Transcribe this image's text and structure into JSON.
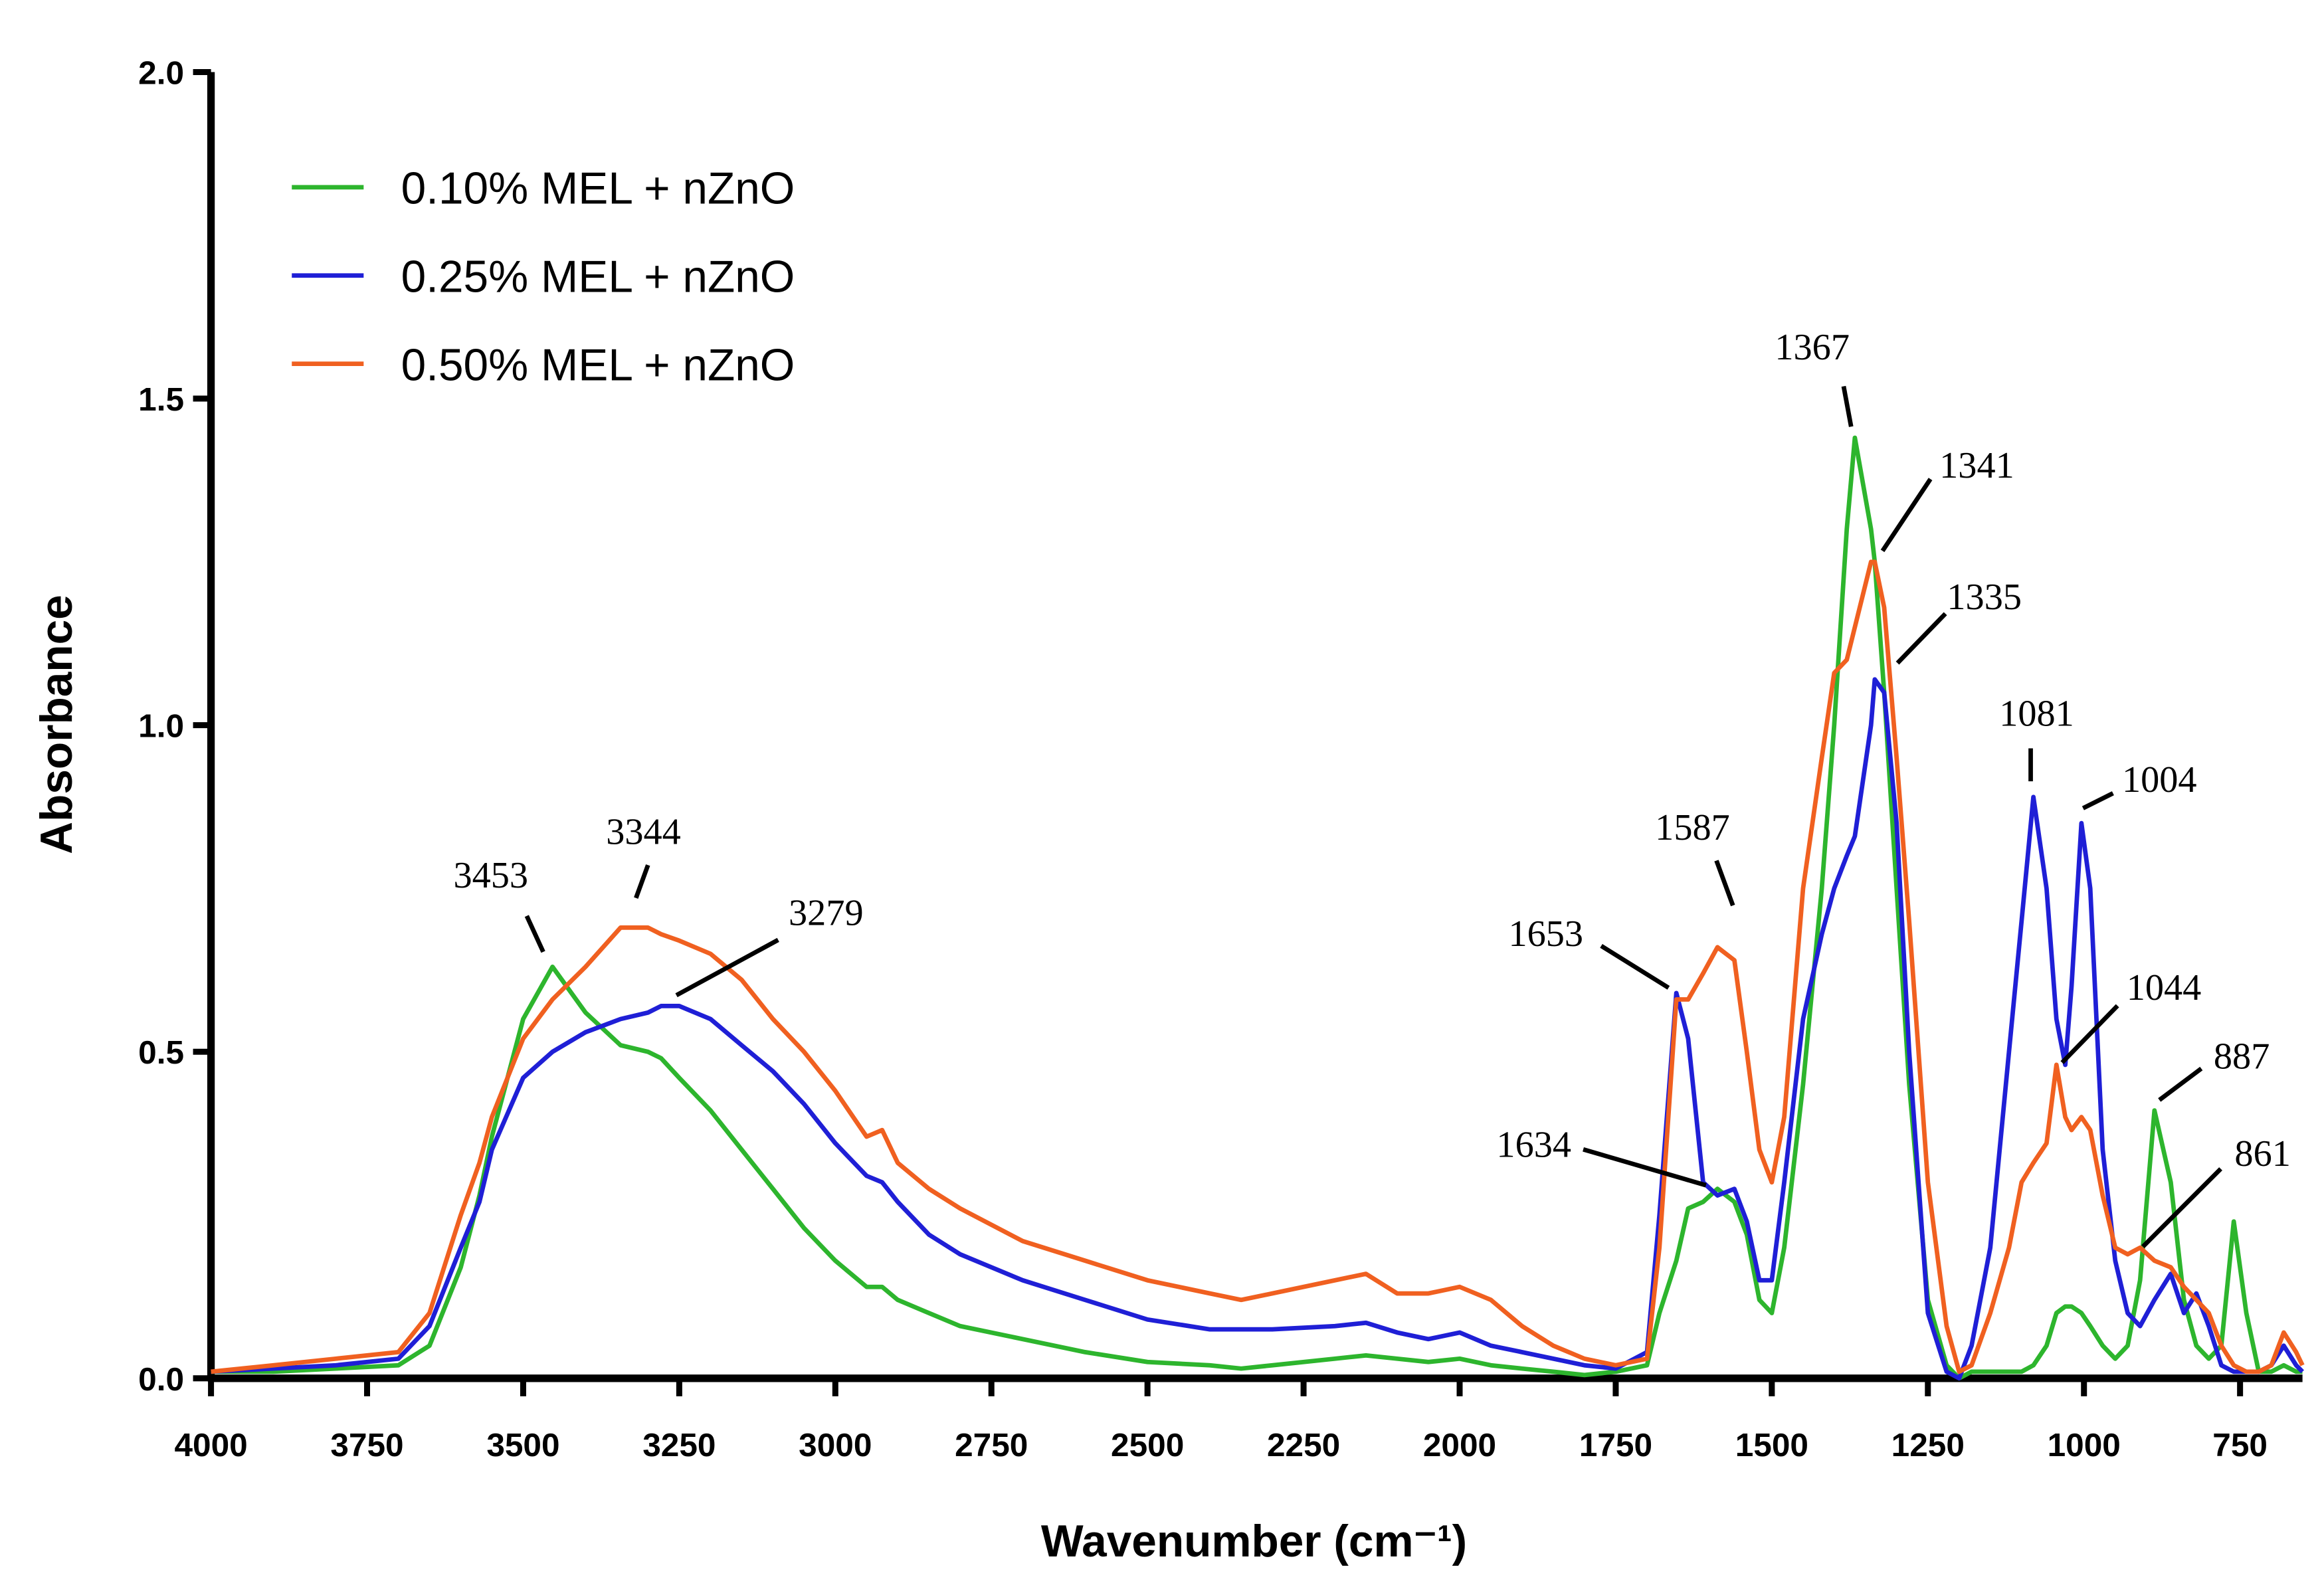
{
  "chart_data": {
    "type": "line",
    "xlabel": "Wavenumber (cm⁻¹)",
    "ylabel": "Absorbance",
    "x": [
      4000,
      3900,
      3800,
      3700,
      3650,
      3600,
      3570,
      3550,
      3500,
      3453,
      3400,
      3344,
      3300,
      3279,
      3250,
      3200,
      3150,
      3100,
      3050,
      3000,
      2950,
      2925,
      2900,
      2850,
      2800,
      2700,
      2600,
      2500,
      2400,
      2350,
      2300,
      2200,
      2150,
      2100,
      2050,
      2000,
      1950,
      1900,
      1850,
      1800,
      1750,
      1700,
      1680,
      1653,
      1634,
      1610,
      1587,
      1560,
      1540,
      1520,
      1500,
      1480,
      1450,
      1420,
      1400,
      1380,
      1367,
      1341,
      1335,
      1320,
      1300,
      1280,
      1250,
      1220,
      1200,
      1180,
      1150,
      1120,
      1100,
      1081,
      1060,
      1044,
      1030,
      1020,
      1004,
      990,
      970,
      950,
      930,
      910,
      887,
      861,
      840,
      820,
      800,
      780,
      760,
      740,
      720,
      700,
      680,
      660,
      650
    ],
    "series": [
      {
        "name": "0.10% MEL + nZnO",
        "color": "#2db52d",
        "values": [
          0.01,
          0.01,
          0.015,
          0.02,
          0.05,
          0.17,
          0.28,
          0.37,
          0.55,
          0.63,
          0.56,
          0.51,
          0.5,
          0.49,
          0.46,
          0.41,
          0.35,
          0.29,
          0.23,
          0.18,
          0.14,
          0.14,
          0.12,
          0.1,
          0.08,
          0.06,
          0.04,
          0.025,
          0.02,
          0.015,
          0.02,
          0.03,
          0.035,
          0.03,
          0.025,
          0.03,
          0.02,
          0.015,
          0.01,
          0.005,
          0.01,
          0.02,
          0.1,
          0.18,
          0.26,
          0.27,
          0.29,
          0.27,
          0.22,
          0.12,
          0.1,
          0.2,
          0.45,
          0.75,
          1.0,
          1.3,
          1.44,
          1.3,
          1.25,
          1.05,
          0.75,
          0.45,
          0.12,
          0.02,
          0.0,
          0.01,
          0.01,
          0.01,
          0.01,
          0.02,
          0.05,
          0.1,
          0.11,
          0.11,
          0.1,
          0.08,
          0.05,
          0.03,
          0.05,
          0.15,
          0.41,
          0.3,
          0.12,
          0.05,
          0.03,
          0.05,
          0.24,
          0.1,
          0.01,
          0.01,
          0.02,
          0.01,
          0.01
        ]
      },
      {
        "name": "0.25% MEL + nZnO",
        "color": "#1f1fd6",
        "values": [
          0.01,
          0.015,
          0.02,
          0.03,
          0.08,
          0.2,
          0.27,
          0.35,
          0.46,
          0.5,
          0.53,
          0.55,
          0.56,
          0.57,
          0.57,
          0.55,
          0.51,
          0.47,
          0.42,
          0.36,
          0.31,
          0.3,
          0.27,
          0.22,
          0.19,
          0.15,
          0.12,
          0.09,
          0.075,
          0.075,
          0.075,
          0.08,
          0.085,
          0.07,
          0.06,
          0.07,
          0.05,
          0.04,
          0.03,
          0.02,
          0.015,
          0.04,
          0.25,
          0.59,
          0.52,
          0.3,
          0.28,
          0.29,
          0.24,
          0.15,
          0.15,
          0.3,
          0.55,
          0.68,
          0.75,
          0.8,
          0.83,
          1.0,
          1.07,
          1.05,
          0.85,
          0.5,
          0.1,
          0.01,
          0.0,
          0.05,
          0.2,
          0.5,
          0.7,
          0.89,
          0.75,
          0.55,
          0.48,
          0.6,
          0.85,
          0.75,
          0.35,
          0.18,
          0.1,
          0.08,
          0.12,
          0.16,
          0.1,
          0.13,
          0.08,
          0.02,
          0.01,
          0.01,
          0.01,
          0.02,
          0.05,
          0.02,
          0.01
        ]
      },
      {
        "name": "0.50% MEL + nZnO",
        "color": "#f06020",
        "values": [
          0.01,
          0.02,
          0.03,
          0.04,
          0.1,
          0.25,
          0.33,
          0.4,
          0.52,
          0.58,
          0.63,
          0.69,
          0.69,
          0.68,
          0.67,
          0.65,
          0.61,
          0.55,
          0.5,
          0.44,
          0.37,
          0.38,
          0.33,
          0.29,
          0.26,
          0.21,
          0.18,
          0.15,
          0.13,
          0.12,
          0.13,
          0.15,
          0.16,
          0.13,
          0.13,
          0.14,
          0.12,
          0.08,
          0.05,
          0.03,
          0.02,
          0.03,
          0.2,
          0.58,
          0.58,
          0.62,
          0.66,
          0.64,
          0.5,
          0.35,
          0.3,
          0.4,
          0.75,
          0.95,
          1.08,
          1.1,
          1.15,
          1.25,
          1.25,
          1.18,
          0.95,
          0.7,
          0.3,
          0.08,
          0.01,
          0.02,
          0.1,
          0.2,
          0.3,
          0.33,
          0.36,
          0.48,
          0.4,
          0.38,
          0.4,
          0.38,
          0.28,
          0.2,
          0.19,
          0.2,
          0.18,
          0.17,
          0.14,
          0.12,
          0.1,
          0.05,
          0.02,
          0.01,
          0.01,
          0.02,
          0.07,
          0.04,
          0.02
        ]
      }
    ],
    "xlim": [
      4000,
      650
    ],
    "ylim": [
      0,
      2
    ],
    "xticks": [
      4000,
      3750,
      3500,
      3250,
      3000,
      2750,
      2500,
      2250,
      2000,
      1750,
      1500,
      1250,
      1000,
      750
    ],
    "yticks": [
      {
        "value": 0,
        "label": "0.0"
      },
      {
        "value": 0.5,
        "label": "0.5"
      },
      {
        "value": 1,
        "label": "1.0"
      },
      {
        "value": 1.5,
        "label": "1.5"
      },
      {
        "value": 2,
        "label": "2.0"
      }
    ],
    "legend": "upper-left",
    "annotations": [
      "3453",
      "3344",
      "3279",
      "1653",
      "1587",
      "1634",
      "1367",
      "1341",
      "1335",
      "1081",
      "1004",
      "1044",
      "887",
      "861"
    ]
  }
}
